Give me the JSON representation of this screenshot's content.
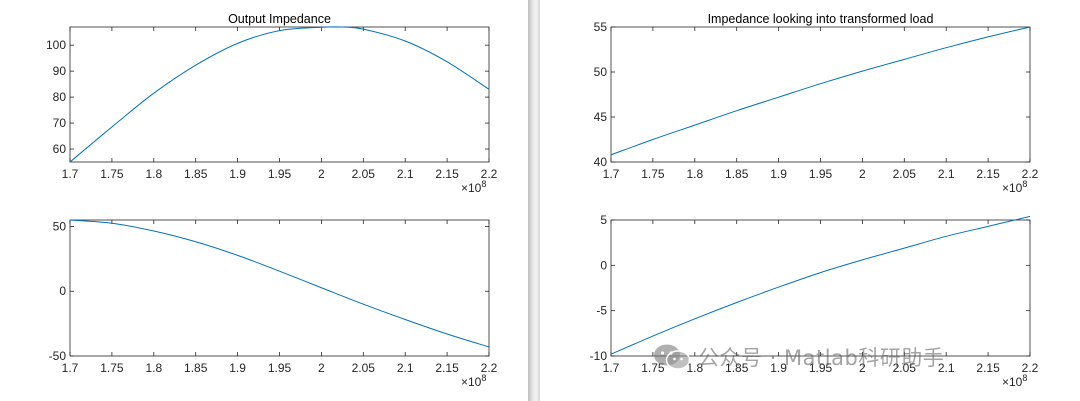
{
  "chart_data": [
    {
      "type": "line",
      "title": "Output Impedance",
      "xlim": [
        170000000,
        220000000
      ],
      "ylim": [
        55,
        107
      ],
      "xticks": [
        "1.7",
        "1.75",
        "1.8",
        "1.85",
        "1.9",
        "1.95",
        "2",
        "2.05",
        "2.1",
        "2.15",
        "2.2"
      ],
      "yticks": [
        "60",
        "70",
        "80",
        "90",
        "100"
      ],
      "x_exponent_label": "×10",
      "x_exponent_power": "8",
      "series": [
        {
          "x": [
            170000000,
            175000000,
            180000000,
            185000000,
            190000000,
            195000000,
            200000000,
            202500000,
            205000000,
            210000000,
            215000000,
            220000000
          ],
          "values": [
            55,
            68.5,
            81.5,
            92.3,
            100.7,
            105.6,
            106.9,
            107,
            106.2,
            101.6,
            93.6,
            83
          ]
        }
      ]
    },
    {
      "type": "line",
      "title": "",
      "xlim": [
        170000000,
        220000000
      ],
      "ylim": [
        -50,
        55
      ],
      "xticks": [
        "1.7",
        "1.75",
        "1.8",
        "1.85",
        "1.9",
        "1.95",
        "2",
        "2.05",
        "2.1",
        "2.15",
        "2.2"
      ],
      "yticks": [
        "-50",
        "0",
        "50"
      ],
      "x_exponent_label": "×10",
      "x_exponent_power": "8",
      "series": [
        {
          "x": [
            170000000,
            175000000,
            180000000,
            185000000,
            190000000,
            195000000,
            200000000,
            205000000,
            210000000,
            215000000,
            220000000
          ],
          "values": [
            55,
            52.5,
            46.5,
            38.2,
            27.7,
            15.5,
            2.7,
            -10,
            -21.8,
            -33,
            -43
          ]
        }
      ]
    },
    {
      "type": "line",
      "title": "Impedance looking into transformed load",
      "xlim": [
        170000000,
        220000000
      ],
      "ylim": [
        40,
        55
      ],
      "xticks": [
        "1.7",
        "1.75",
        "1.8",
        "1.85",
        "1.9",
        "1.95",
        "2",
        "2.05",
        "2.1",
        "2.15",
        "2.2"
      ],
      "yticks": [
        "40",
        "45",
        "50",
        "55"
      ],
      "x_exponent_label": "×10",
      "x_exponent_power": "8",
      "series": [
        {
          "x": [
            170000000,
            175000000,
            180000000,
            185000000,
            190000000,
            195000000,
            200000000,
            205000000,
            210000000,
            215000000,
            220000000
          ],
          "values": [
            40.8,
            42.5,
            44.1,
            45.7,
            47.2,
            48.7,
            50.1,
            51.4,
            52.7,
            53.9,
            55
          ]
        }
      ]
    },
    {
      "type": "line",
      "title": "",
      "xlim": [
        170000000,
        220000000
      ],
      "ylim": [
        -10,
        5
      ],
      "xticks": [
        "1.7",
        "1.75",
        "1.8",
        "1.85",
        "1.9",
        "1.95",
        "2",
        "2.05",
        "2.1",
        "2.15",
        "2.2"
      ],
      "yticks": [
        "-10",
        "-5",
        "0",
        "5"
      ],
      "x_exponent_label": "×10",
      "x_exponent_power": "8",
      "series": [
        {
          "x": [
            170000000,
            175000000,
            180000000,
            185000000,
            190000000,
            195000000,
            200000000,
            205000000,
            210000000,
            215000000,
            220000000
          ],
          "values": [
            -9.8,
            -7.8,
            -5.9,
            -4.1,
            -2.4,
            -0.8,
            0.6,
            1.9,
            3.2,
            4.3,
            5.4
          ]
        }
      ]
    }
  ],
  "colors": {
    "line": "#0072BD",
    "axis": "#262626",
    "gap": "#d8d8d8"
  },
  "watermark": {
    "text": "公众号 · Matlab科研助手",
    "icon": "wechat-icon"
  }
}
